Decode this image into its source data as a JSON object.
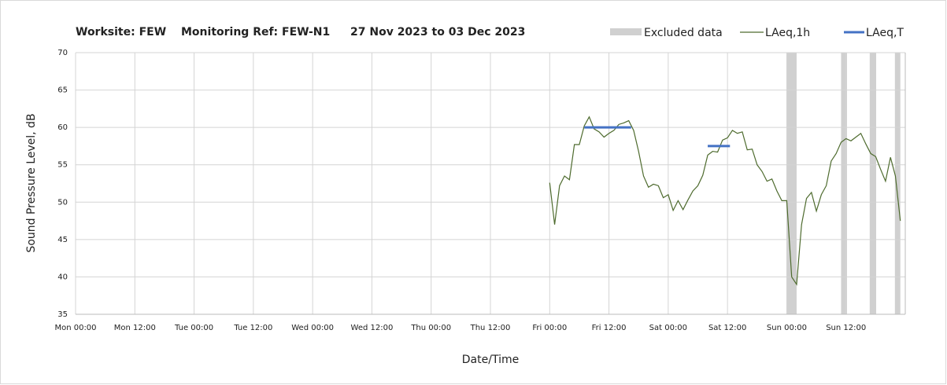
{
  "chart_data": {
    "type": "line",
    "title": [
      "Worksite: FEW",
      "Monitoring Ref: FEW-N1",
      "27 Nov 2023 to 03 Dec 2023"
    ],
    "xlabel": "Date/Time",
    "ylabel": "Sound Pressure Level, dB",
    "xlim": [
      0,
      168
    ],
    "ylim": [
      35,
      70
    ],
    "yticks": [
      35,
      40,
      45,
      50,
      55,
      60,
      65,
      70
    ],
    "xticks": [
      {
        "value": 0,
        "label": "Mon 00:00"
      },
      {
        "value": 12,
        "label": "Mon 12:00"
      },
      {
        "value": 24,
        "label": "Tue 00:00"
      },
      {
        "value": 36,
        "label": "Tue 12:00"
      },
      {
        "value": 48,
        "label": "Wed 00:00"
      },
      {
        "value": 60,
        "label": "Wed 12:00"
      },
      {
        "value": 72,
        "label": "Thu 00:00"
      },
      {
        "value": 84,
        "label": "Thu 12:00"
      },
      {
        "value": 96,
        "label": "Fri 00:00"
      },
      {
        "value": 108,
        "label": "Fri 12:00"
      },
      {
        "value": 120,
        "label": "Sat 00:00"
      },
      {
        "value": 132,
        "label": "Sat 12:00"
      },
      {
        "value": 144,
        "label": "Sun 00:00"
      },
      {
        "value": 156,
        "label": "Sun 12:00"
      }
    ],
    "grid": true,
    "legend_position": "top-right",
    "excluded": {
      "name": "Excluded data",
      "color": "#d0d0d0",
      "ranges": [
        [
          144,
          146
        ],
        [
          155,
          156.2
        ],
        [
          160.8,
          162.1
        ],
        [
          165.9,
          167
        ]
      ]
    },
    "series": [
      {
        "name": "LAeq,1h",
        "color": "#4e6b2e",
        "x": [
          96,
          97,
          98,
          99,
          100,
          101,
          102,
          103,
          104,
          105,
          106,
          107,
          108,
          109,
          110,
          111,
          112,
          113,
          114,
          115,
          116,
          117,
          118,
          119,
          120,
          121,
          122,
          123,
          124,
          125,
          126,
          127,
          128,
          129,
          130,
          131,
          132,
          133,
          134,
          135,
          136,
          137,
          138,
          139,
          140,
          141,
          142,
          143,
          144,
          145,
          146,
          147,
          148,
          149,
          150,
          151,
          152,
          153,
          154,
          155,
          156,
          157,
          158,
          159,
          160,
          161,
          162,
          163,
          164,
          165,
          166,
          167
        ],
        "values": [
          52.6,
          47.0,
          52.2,
          53.5,
          53.0,
          57.7,
          57.7,
          60.2,
          61.4,
          59.8,
          59.4,
          58.7,
          59.2,
          59.6,
          60.4,
          60.6,
          60.9,
          59.6,
          56.8,
          53.5,
          52.0,
          52.4,
          52.2,
          50.6,
          51.0,
          48.9,
          50.2,
          49.0,
          50.3,
          51.5,
          52.2,
          53.6,
          56.3,
          56.8,
          56.7,
          58.3,
          58.6,
          59.6,
          59.2,
          59.4,
          57.0,
          57.1,
          55.0,
          54.1,
          52.8,
          53.1,
          51.5,
          50.2,
          50.2,
          40.0,
          39.0,
          47.0,
          50.5,
          51.3,
          48.8,
          51.0,
          52.2,
          55.5,
          56.5,
          58.0,
          58.5,
          58.2,
          58.7,
          59.2,
          57.8,
          56.5,
          56.1,
          54.4,
          52.8,
          56.0,
          53.5,
          47.5
        ]
      },
      {
        "name": "LAeq,T",
        "color": "#4472c4",
        "segments": [
          {
            "x": [
              103,
              112.5
            ],
            "value": 60.0
          },
          {
            "x": [
              128,
              132.5
            ],
            "value": 57.5
          }
        ]
      }
    ]
  }
}
